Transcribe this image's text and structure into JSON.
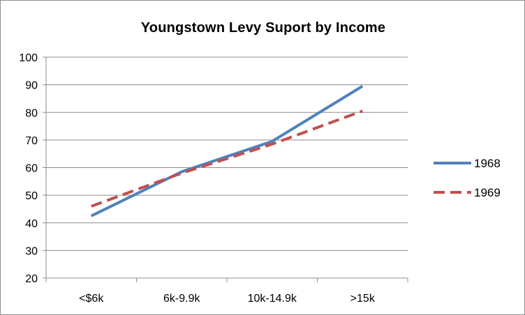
{
  "chart_data": {
    "type": "line",
    "title": "Youngstown Levy Suport by Income",
    "xlabel": "",
    "ylabel": "",
    "categories": [
      "<$6k",
      "6k-9.9k",
      "10k-14.9k",
      ">15k"
    ],
    "ylim": [
      20,
      100
    ],
    "yticks": [
      20,
      30,
      40,
      50,
      60,
      70,
      80,
      90,
      100
    ],
    "grid": true,
    "legend_position": "right",
    "series": [
      {
        "name": "1968",
        "values": [
          42.5,
          58.5,
          69.5,
          89.5
        ],
        "color": "#4f81bd",
        "dash": "solid"
      },
      {
        "name": "1969",
        "values": [
          46,
          58,
          68.5,
          80.5
        ],
        "color": "#c0504d",
        "dash": "dashed"
      }
    ]
  }
}
